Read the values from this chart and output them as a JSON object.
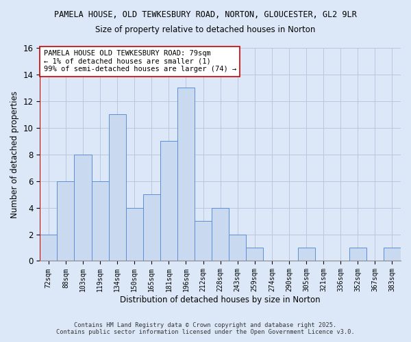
{
  "title1": "PAMELA HOUSE, OLD TEWKESBURY ROAD, NORTON, GLOUCESTER, GL2 9LR",
  "title2": "Size of property relative to detached houses in Norton",
  "xlabel": "Distribution of detached houses by size in Norton",
  "ylabel": "Number of detached properties",
  "categories": [
    "72sqm",
    "88sqm",
    "103sqm",
    "119sqm",
    "134sqm",
    "150sqm",
    "165sqm",
    "181sqm",
    "196sqm",
    "212sqm",
    "228sqm",
    "243sqm",
    "259sqm",
    "274sqm",
    "290sqm",
    "305sqm",
    "321sqm",
    "336sqm",
    "352sqm",
    "367sqm",
    "383sqm"
  ],
  "values": [
    2,
    6,
    8,
    6,
    11,
    4,
    5,
    9,
    13,
    3,
    4,
    2,
    1,
    0,
    0,
    1,
    0,
    0,
    1,
    0,
    1
  ],
  "bar_color": "#c9d9f0",
  "bar_edge_color": "#5b8dd9",
  "highlight_line_color": "#cc0000",
  "ylim": [
    0,
    16
  ],
  "yticks": [
    0,
    2,
    4,
    6,
    8,
    10,
    12,
    14,
    16
  ],
  "annotation_text": "PAMELA HOUSE OLD TEWKESBURY ROAD: 79sqm\n← 1% of detached houses are smaller (1)\n99% of semi-detached houses are larger (74) →",
  "annotation_box_color": "#ffffff",
  "annotation_box_edge": "#cc0000",
  "footer1": "Contains HM Land Registry data © Crown copyright and database right 2025.",
  "footer2": "Contains public sector information licensed under the Open Government Licence v3.0.",
  "bg_color": "#dce8f8",
  "grid_color": "#b8c8e0"
}
